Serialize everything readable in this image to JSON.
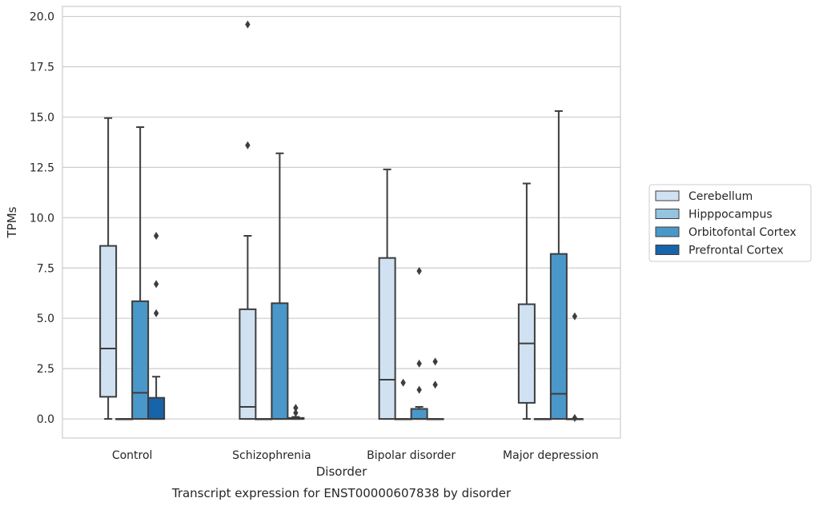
{
  "chart_data": {
    "type": "box",
    "xlabel": "Disorder",
    "ylabel": "TPMs",
    "caption": "Transcript expression for ENST00000607838 by disorder",
    "categories": [
      "Control",
      "Schizophrenia",
      "Bipolar disorder",
      "Major depression"
    ],
    "ylim": [
      -0.95,
      20.5
    ],
    "yticks": [
      "0.0",
      "2.5",
      "5.0",
      "7.5",
      "10.0",
      "12.5",
      "15.0",
      "17.5",
      "20.0"
    ],
    "grid": "horizontal",
    "legend_placement": "right",
    "series": [
      {
        "name": "Cerebellum",
        "color": "#d0e1f2",
        "boxes": [
          {
            "min": 0.0,
            "q1": 1.1,
            "median": 3.5,
            "q3": 8.6,
            "max": 14.95,
            "outliers": []
          },
          {
            "min": 0.0,
            "q1": 0.0,
            "median": 0.6,
            "q3": 5.45,
            "max": 9.1,
            "outliers": [
              13.6,
              19.6
            ]
          },
          {
            "min": 0.0,
            "q1": 0.0,
            "median": 1.95,
            "q3": 8.0,
            "max": 12.4,
            "outliers": []
          },
          {
            "min": 0.0,
            "q1": 0.8,
            "median": 3.75,
            "q3": 5.7,
            "max": 11.7,
            "outliers": []
          }
        ]
      },
      {
        "name": "Hipppocampus",
        "color": "#94c4df",
        "boxes": [
          {
            "min": 0.0,
            "q1": 0.0,
            "median": 0.0,
            "q3": 0.0,
            "max": 0.0,
            "outliers": []
          },
          {
            "min": 0.0,
            "q1": 0.0,
            "median": 0.0,
            "q3": 0.0,
            "max": 0.0,
            "outliers": []
          },
          {
            "min": 0.0,
            "q1": 0.0,
            "median": 0.0,
            "q3": 0.0,
            "max": 0.0,
            "outliers": [
              1.8
            ]
          },
          {
            "min": 0.0,
            "q1": 0.0,
            "median": 0.0,
            "q3": 0.0,
            "max": 0.0,
            "outliers": []
          }
        ]
      },
      {
        "name": "Orbitofontal Cortex",
        "color": "#4a98c9",
        "boxes": [
          {
            "min": 0.0,
            "q1": 0.0,
            "median": 1.3,
            "q3": 5.85,
            "max": 14.5,
            "outliers": []
          },
          {
            "min": 0.0,
            "q1": 0.0,
            "median": 0.0,
            "q3": 5.75,
            "max": 13.2,
            "outliers": []
          },
          {
            "min": 0.0,
            "q1": 0.0,
            "median": 0.0,
            "q3": 0.5,
            "max": 0.6,
            "outliers": [
              1.45,
              2.75,
              7.35
            ]
          },
          {
            "min": 0.0,
            "q1": 0.0,
            "median": 1.25,
            "q3": 8.2,
            "max": 15.3,
            "outliers": []
          }
        ]
      },
      {
        "name": "Prefrontal Cortex",
        "color": "#1764ab",
        "boxes": [
          {
            "min": 0.0,
            "q1": 0.0,
            "median": 0.0,
            "q3": 1.05,
            "max": 2.1,
            "outliers": [
              5.25,
              6.7,
              9.1
            ]
          },
          {
            "min": 0.0,
            "q1": 0.0,
            "median": 0.0,
            "q3": 0.05,
            "max": 0.1,
            "outliers": [
              0.3,
              0.55
            ]
          },
          {
            "min": 0.0,
            "q1": 0.0,
            "median": 0.0,
            "q3": 0.0,
            "max": 0.0,
            "outliers": [
              1.7,
              2.85
            ]
          },
          {
            "min": 0.0,
            "q1": 0.0,
            "median": 0.0,
            "q3": 0.0,
            "max": 0.0,
            "outliers": [
              0.05,
              5.1
            ]
          }
        ]
      }
    ]
  }
}
